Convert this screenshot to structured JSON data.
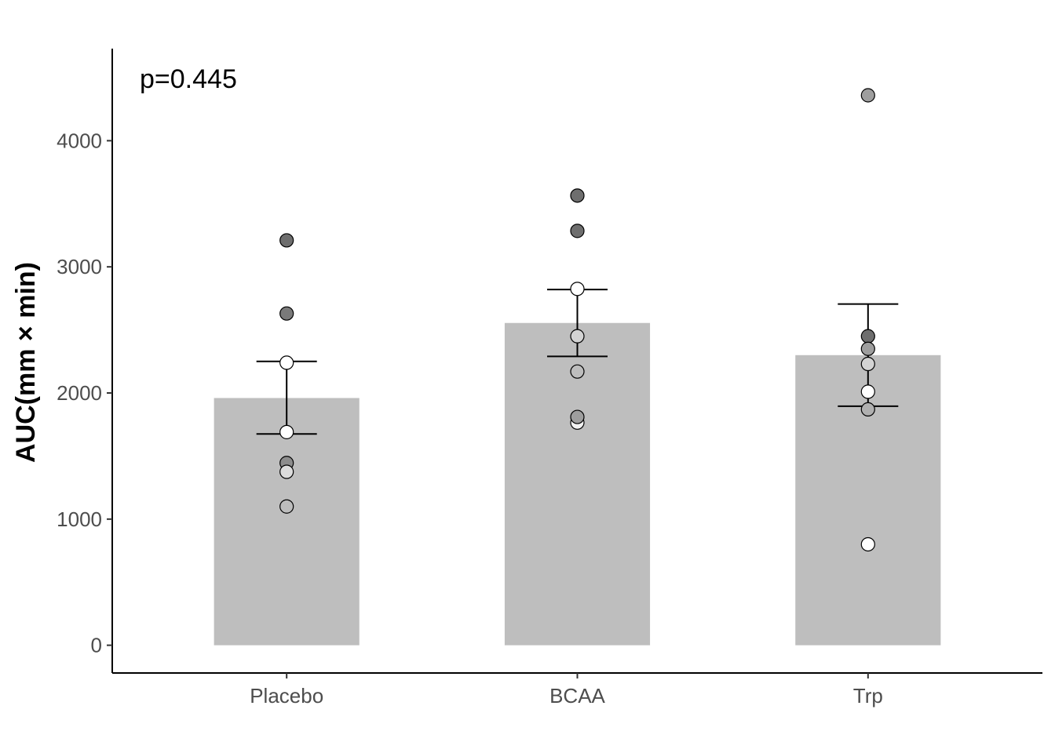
{
  "chart_data": {
    "type": "bar",
    "title": "",
    "xlabel": "",
    "ylabel": "AUC(mm × min)",
    "annotation": "p=0.445",
    "categories": [
      "Placebo",
      "BCAA",
      "Trp"
    ],
    "values": [
      1960,
      2555,
      2300
    ],
    "error_bars": [
      {
        "lower": 1675,
        "upper": 2250
      },
      {
        "lower": 2290,
        "upper": 2820
      },
      {
        "lower": 1895,
        "upper": 2705
      }
    ],
    "points": [
      [
        {
          "y": 3210,
          "fill": "#6e6e6e"
        },
        {
          "y": 2630,
          "fill": "#7a7a7a"
        },
        {
          "y": 2240,
          "fill": "#ffffff"
        },
        {
          "y": 1690,
          "fill": "#ffffff"
        },
        {
          "y": 1445,
          "fill": "#8c8c8c"
        },
        {
          "y": 1375,
          "fill": "#dcdcdc"
        },
        {
          "y": 1100,
          "fill": "#bdbdbd"
        }
      ],
      [
        {
          "y": 3565,
          "fill": "#6e6e6e"
        },
        {
          "y": 3285,
          "fill": "#6e6e6e"
        },
        {
          "y": 2825,
          "fill": "#ffffff"
        },
        {
          "y": 2450,
          "fill": "#d3d3d3"
        },
        {
          "y": 2170,
          "fill": "#bdbdbd"
        },
        {
          "y": 1765,
          "fill": "#f2f2f2"
        },
        {
          "y": 1810,
          "fill": "#9e9e9e"
        }
      ],
      [
        {
          "y": 4360,
          "fill": "#9e9e9e"
        },
        {
          "y": 2450,
          "fill": "#6e6e6e"
        },
        {
          "y": 2350,
          "fill": "#9e9e9e"
        },
        {
          "y": 2230,
          "fill": "#d3d3d3"
        },
        {
          "y": 2010,
          "fill": "#ffffff"
        },
        {
          "y": 1870,
          "fill": "#b0b0b0"
        },
        {
          "y": 800,
          "fill": "#ffffff"
        }
      ]
    ],
    "y_ticks": [
      0,
      1000,
      2000,
      3000,
      4000
    ],
    "y_tick_labels": [
      "0",
      "1000",
      "2000",
      "3000",
      "4000"
    ],
    "ylim": [
      -220,
      4730
    ],
    "grid": false,
    "bar_color": "#bebebe"
  }
}
